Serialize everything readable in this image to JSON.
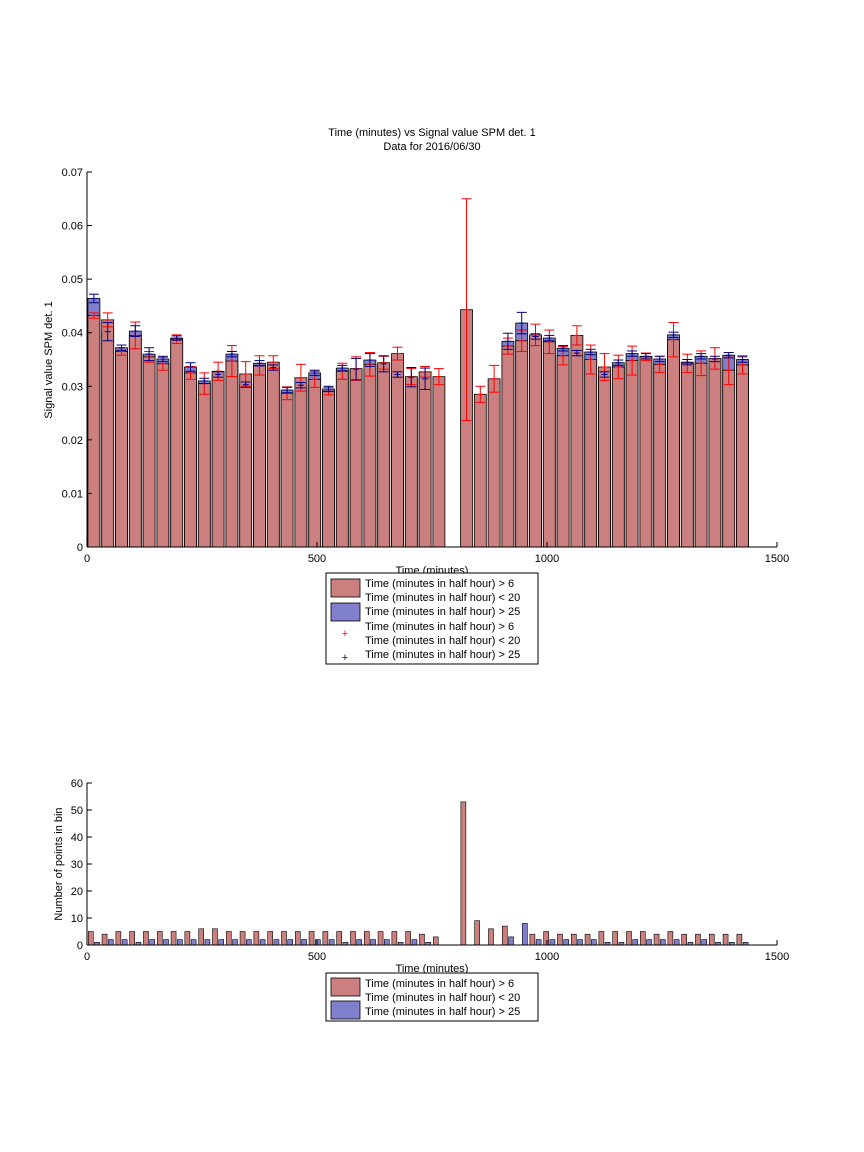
{
  "colors": {
    "series_a": "#CC7F7F",
    "series_b": "#7F7FCC",
    "err_a": "#FF0000",
    "err_b": "#000080",
    "axis": "#000000"
  },
  "chart_data": [
    {
      "type": "bar",
      "title": "Time (minutes) vs Signal value SPM det. 1",
      "subtitle": "Data for 2016/06/30",
      "xlabel": "Time (minutes)",
      "ylabel": "Signal value SPM det. 1",
      "xlim": [
        0,
        1500
      ],
      "ylim": [
        0,
        0.07
      ],
      "xticks": [
        "0",
        "500",
        "1000",
        "1500"
      ],
      "yticks": [
        "0",
        "0.01",
        "0.02",
        "0.03",
        "0.04",
        "0.05",
        "0.06",
        "0.07"
      ],
      "legend_position": "below",
      "legend": [
        "Time (minutes in half hour) > 6\nTime (minutes in half hour) < 20",
        "Time (minutes in half hour) > 25",
        "Time (minutes in half hour) > 6\nTime (minutes in half hour) < 20",
        "Time (minutes in half hour) > 25"
      ],
      "x": [
        15,
        45,
        75,
        105,
        135,
        165,
        195,
        225,
        255,
        285,
        315,
        345,
        375,
        405,
        435,
        465,
        495,
        525,
        555,
        585,
        615,
        645,
        675,
        705,
        735,
        765,
        825,
        855,
        885,
        915,
        945,
        975,
        1005,
        1035,
        1065,
        1095,
        1125,
        1155,
        1185,
        1215,
        1245,
        1275,
        1305,
        1335,
        1365,
        1395,
        1425
      ],
      "series": [
        {
          "values": [
            0.0432,
            0.0424,
            0.0365,
            0.0395,
            0.0355,
            0.0342,
            0.0388,
            0.0325,
            0.0305,
            0.0328,
            0.0347,
            0.0323,
            0.0339,
            0.0345,
            0.0287,
            0.0316,
            0.0313,
            0.0291,
            0.0328,
            0.0333,
            0.0341,
            0.0344,
            0.0361,
            0.0318,
            0.0327,
            0.0318,
            0.0443,
            0.0285,
            0.0314,
            0.0375,
            0.0385,
            0.0396,
            0.0383,
            0.0357,
            0.0395,
            0.035,
            0.0336,
            0.0336,
            0.0348,
            0.0355,
            0.0341,
            0.0387,
            0.0343,
            0.0343,
            0.0352,
            0.033,
            0.034
          ],
          "err": [
            0.0005,
            0.0013,
            0.0007,
            0.0025,
            0.001,
            0.0012,
            0.0008,
            0.0012,
            0.002,
            0.0017,
            0.0029,
            0.0023,
            0.0018,
            0.0012,
            0.0012,
            0.0025,
            0.0015,
            0.0007,
            0.0015,
            0.0022,
            0.0022,
            0.0012,
            0.0012,
            0.0015,
            0.001,
            0.0015,
            0.0207,
            0.0015,
            0.0025,
            0.0015,
            0.002,
            0.002,
            0.0022,
            0.0017,
            0.0018,
            0.0027,
            0.0025,
            0.0022,
            0.0027,
            0.0007,
            0.0015,
            0.0032,
            0.0017,
            0.0023,
            0.002,
            0.0027,
            0.0017
          ]
        },
        {
          "values": [
            0.0464,
            0.0402,
            0.0372,
            0.0403,
            0.036,
            0.0351,
            0.039,
            0.0336,
            0.031,
            0.0322,
            0.036,
            0.0303,
            0.0343,
            0.0335,
            0.0293,
            0.0302,
            0.0325,
            0.0295,
            0.0334,
            0.0332,
            0.0349,
            0.0342,
            0.0322,
            0.0317,
            0.0314,
            null,
            null,
            null,
            null,
            0.0384,
            0.0418,
            0.0393,
            0.039,
            0.0371,
            0.0362,
            0.0364,
            0.0322,
            0.0344,
            0.0361,
            0.0356,
            0.0351,
            0.0396,
            0.0345,
            0.0356,
            0.0351,
            0.0358,
            0.035
          ],
          "err": [
            0.0008,
            0.0017,
            0.0005,
            0.001,
            0.0012,
            0.0005,
            0.0004,
            0.0008,
            0.0005,
            0.0005,
            0.0005,
            0.0005,
            0.0005,
            0.0005,
            0.0005,
            0.0005,
            0.0005,
            0.0005,
            0.0005,
            0.002,
            0.0012,
            0.0015,
            0.0005,
            0.0018,
            0.002,
            null,
            null,
            null,
            null,
            0.0015,
            0.002,
            0.0005,
            0.0005,
            0.0005,
            0.0005,
            0.0005,
            0.0005,
            0.0005,
            0.0005,
            0.0005,
            0.0005,
            0.0005,
            0.0005,
            0.0005,
            0.0005,
            0.0005,
            0.0005
          ]
        }
      ]
    },
    {
      "type": "bar",
      "xlabel": "Time (minutes)",
      "ylabel": "Number of points in bin",
      "xlim": [
        0,
        1500
      ],
      "ylim": [
        0,
        60
      ],
      "xticks": [
        "0",
        "500",
        "1000",
        "1500"
      ],
      "yticks": [
        "0",
        "10",
        "20",
        "30",
        "40",
        "50",
        "60"
      ],
      "legend_position": "below",
      "legend": [
        "Time (minutes in half hour) > 6\nTime (minutes in half hour) < 20",
        "Time (minutes in half hour) > 25"
      ],
      "x": [
        15,
        45,
        75,
        105,
        135,
        165,
        195,
        225,
        255,
        285,
        315,
        345,
        375,
        405,
        435,
        465,
        495,
        525,
        555,
        585,
        615,
        645,
        675,
        705,
        735,
        765,
        825,
        855,
        885,
        915,
        945,
        975,
        1005,
        1035,
        1065,
        1095,
        1125,
        1155,
        1185,
        1215,
        1245,
        1275,
        1305,
        1335,
        1365,
        1395,
        1425
      ],
      "series": [
        {
          "values": [
            5,
            4,
            5,
            5,
            5,
            5,
            5,
            5,
            6,
            6,
            5,
            5,
            5,
            5,
            5,
            5,
            5,
            5,
            5,
            5,
            5,
            5,
            5,
            5,
            4,
            3,
            53,
            9,
            6,
            7,
            0,
            4,
            5,
            4,
            4,
            4,
            5,
            5,
            5,
            5,
            4,
            5,
            4,
            4,
            4,
            4,
            4
          ],
          "x_offset": -4
        },
        {
          "values": [
            1,
            2,
            2,
            1,
            2,
            2,
            2,
            2,
            2,
            2,
            2,
            2,
            2,
            2,
            2,
            2,
            2,
            2,
            1,
            2,
            2,
            2,
            1,
            2,
            1,
            0,
            0,
            0,
            0,
            3,
            8,
            2,
            2,
            2,
            2,
            2,
            1,
            1,
            2,
            2,
            2,
            2,
            1,
            2,
            1,
            1,
            1
          ],
          "x_offset": 4
        }
      ]
    }
  ]
}
